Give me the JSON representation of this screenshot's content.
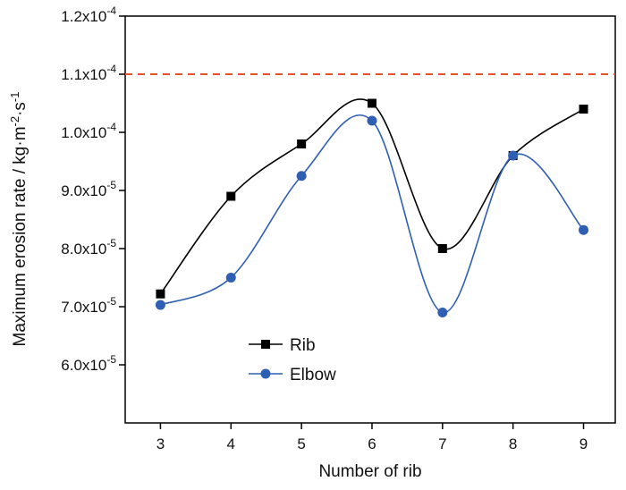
{
  "chart_data": {
    "type": "line",
    "xlabel": "Number of rib",
    "ylabel": "Maximum erosion rate / kg·m⁻²·s⁻¹",
    "x": [
      3,
      4,
      5,
      6,
      7,
      8,
      9
    ],
    "xlim": [
      2.5,
      9.45
    ],
    "ylim": [
      5e-05,
      0.00012
    ],
    "y_ticks": [
      6e-05,
      7e-05,
      8e-05,
      9e-05,
      0.0001,
      0.00011,
      0.00012
    ],
    "y_tick_labels": [
      {
        "mantissa": "6.0x10",
        "exp": "-5"
      },
      {
        "mantissa": "7.0x10",
        "exp": "-5"
      },
      {
        "mantissa": "8.0x10",
        "exp": "-5"
      },
      {
        "mantissa": "9.0x10",
        "exp": "-5"
      },
      {
        "mantissa": "1.0x10",
        "exp": "-4"
      },
      {
        "mantissa": "1.1x10",
        "exp": "-4"
      },
      {
        "mantissa": "1.2x10",
        "exp": "-4"
      }
    ],
    "series": [
      {
        "name": "Rib",
        "color": "#000000",
        "marker": "square",
        "values": [
          7.22e-05,
          8.9e-05,
          9.8e-05,
          0.000105,
          8e-05,
          9.6e-05,
          0.000104
        ]
      },
      {
        "name": "Elbow",
        "color": "#2f5fb3",
        "marker": "circle",
        "values": [
          7.03e-05,
          7.5e-05,
          9.25e-05,
          0.000102,
          6.9e-05,
          9.6e-05,
          8.32e-05
        ]
      }
    ],
    "reference_line": {
      "y": 0.00011,
      "color": "#e8502a",
      "style": "dashed"
    },
    "legend_position": "bottom-left",
    "grid": false
  }
}
